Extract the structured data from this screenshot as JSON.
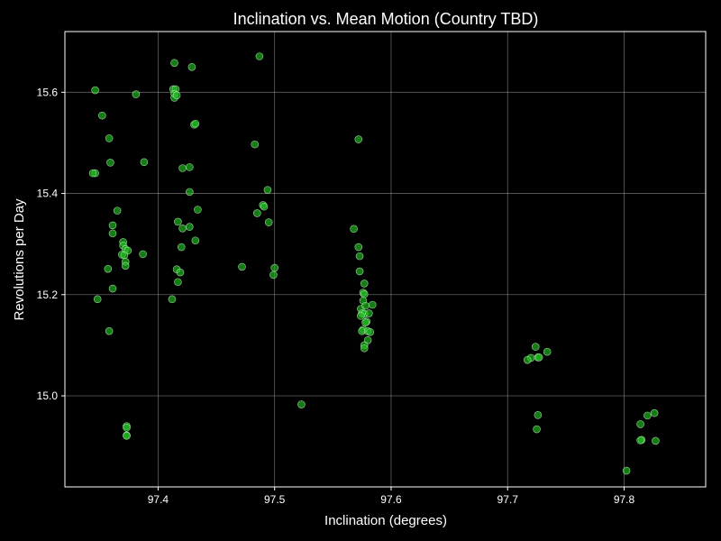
{
  "chart_data": {
    "type": "scatter",
    "title": "Inclination vs. Mean Motion (Country TBD)",
    "xlabel": "Inclination (degrees)",
    "ylabel": "Revolutions per Day",
    "xlim": [
      97.32,
      97.87
    ],
    "ylim": [
      14.82,
      15.72
    ],
    "xticks": [
      97.4,
      97.5,
      97.6,
      97.7,
      97.8
    ],
    "yticks": [
      15.0,
      15.2,
      15.4,
      15.6
    ],
    "xtick_labels": [
      "97.4",
      "97.5",
      "97.6",
      "97.7",
      "97.8"
    ],
    "ytick_labels": [
      "15.0",
      "15.2",
      "15.4",
      "15.6"
    ],
    "grid": true,
    "colors": {
      "background": "#000000",
      "point_fill": "#22c022",
      "point_edge": "#c8ffc8"
    },
    "points": [
      {
        "x": 97.346,
        "y": 15.604
      },
      {
        "x": 97.346,
        "y": 15.44
      },
      {
        "x": 97.344,
        "y": 15.44
      },
      {
        "x": 97.352,
        "y": 15.554
      },
      {
        "x": 97.358,
        "y": 15.509
      },
      {
        "x": 97.359,
        "y": 15.461
      },
      {
        "x": 97.348,
        "y": 15.191
      },
      {
        "x": 97.357,
        "y": 15.251
      },
      {
        "x": 97.358,
        "y": 15.128
      },
      {
        "x": 97.361,
        "y": 15.212
      },
      {
        "x": 97.365,
        "y": 15.366
      },
      {
        "x": 97.361,
        "y": 15.337
      },
      {
        "x": 97.361,
        "y": 15.321
      },
      {
        "x": 97.37,
        "y": 15.304
      },
      {
        "x": 97.37,
        "y": 15.297
      },
      {
        "x": 97.372,
        "y": 15.29
      },
      {
        "x": 97.374,
        "y": 15.287
      },
      {
        "x": 97.369,
        "y": 15.279
      },
      {
        "x": 97.371,
        "y": 15.278
      },
      {
        "x": 97.372,
        "y": 15.265
      },
      {
        "x": 97.372,
        "y": 15.257
      },
      {
        "x": 97.381,
        "y": 15.596
      },
      {
        "x": 97.388,
        "y": 15.462
      },
      {
        "x": 97.387,
        "y": 15.28
      },
      {
        "x": 97.373,
        "y": 14.94
      },
      {
        "x": 97.373,
        "y": 14.937
      },
      {
        "x": 97.373,
        "y": 14.922
      },
      {
        "x": 97.373,
        "y": 14.921
      },
      {
        "x": 97.414,
        "y": 15.658
      },
      {
        "x": 97.413,
        "y": 15.606
      },
      {
        "x": 97.415,
        "y": 15.606
      },
      {
        "x": 97.414,
        "y": 15.597
      },
      {
        "x": 97.414,
        "y": 15.589
      },
      {
        "x": 97.416,
        "y": 15.594
      },
      {
        "x": 97.429,
        "y": 15.65
      },
      {
        "x": 97.421,
        "y": 15.45
      },
      {
        "x": 97.427,
        "y": 15.452
      },
      {
        "x": 97.431,
        "y": 15.536
      },
      {
        "x": 97.432,
        "y": 15.538
      },
      {
        "x": 97.427,
        "y": 15.403
      },
      {
        "x": 97.434,
        "y": 15.368
      },
      {
        "x": 97.417,
        "y": 15.344
      },
      {
        "x": 97.421,
        "y": 15.331
      },
      {
        "x": 97.427,
        "y": 15.334
      },
      {
        "x": 97.432,
        "y": 15.307
      },
      {
        "x": 97.42,
        "y": 15.294
      },
      {
        "x": 97.416,
        "y": 15.25
      },
      {
        "x": 97.419,
        "y": 15.244
      },
      {
        "x": 97.417,
        "y": 15.225
      },
      {
        "x": 97.412,
        "y": 15.191
      },
      {
        "x": 97.487,
        "y": 15.671
      },
      {
        "x": 97.483,
        "y": 15.497
      },
      {
        "x": 97.494,
        "y": 15.407
      },
      {
        "x": 97.49,
        "y": 15.377
      },
      {
        "x": 97.491,
        "y": 15.374
      },
      {
        "x": 97.485,
        "y": 15.361
      },
      {
        "x": 97.495,
        "y": 15.343
      },
      {
        "x": 97.472,
        "y": 15.255
      },
      {
        "x": 97.5,
        "y": 15.253
      },
      {
        "x": 97.499,
        "y": 15.239
      },
      {
        "x": 97.523,
        "y": 14.983
      },
      {
        "x": 97.572,
        "y": 15.507
      },
      {
        "x": 97.568,
        "y": 15.33
      },
      {
        "x": 97.572,
        "y": 15.294
      },
      {
        "x": 97.573,
        "y": 15.276
      },
      {
        "x": 97.573,
        "y": 15.246
      },
      {
        "x": 97.577,
        "y": 15.222
      },
      {
        "x": 97.576,
        "y": 15.204
      },
      {
        "x": 97.577,
        "y": 15.201
      },
      {
        "x": 97.576,
        "y": 15.188
      },
      {
        "x": 97.574,
        "y": 15.172
      },
      {
        "x": 97.578,
        "y": 15.178
      },
      {
        "x": 97.575,
        "y": 15.163
      },
      {
        "x": 97.577,
        "y": 15.162
      },
      {
        "x": 97.574,
        "y": 15.158
      },
      {
        "x": 97.579,
        "y": 15.147
      },
      {
        "x": 97.578,
        "y": 15.145
      },
      {
        "x": 97.576,
        "y": 15.131
      },
      {
        "x": 97.575,
        "y": 15.128
      },
      {
        "x": 97.58,
        "y": 15.128
      },
      {
        "x": 97.582,
        "y": 15.126
      },
      {
        "x": 97.584,
        "y": 15.18
      },
      {
        "x": 97.581,
        "y": 15.163
      },
      {
        "x": 97.58,
        "y": 15.11
      },
      {
        "x": 97.577,
        "y": 15.1
      },
      {
        "x": 97.577,
        "y": 15.094
      },
      {
        "x": 97.724,
        "y": 15.097
      },
      {
        "x": 97.734,
        "y": 15.087
      },
      {
        "x": 97.72,
        "y": 15.075
      },
      {
        "x": 97.726,
        "y": 15.076
      },
      {
        "x": 97.727,
        "y": 15.076
      },
      {
        "x": 97.717,
        "y": 15.071
      },
      {
        "x": 97.726,
        "y": 14.962
      },
      {
        "x": 97.725,
        "y": 14.934
      },
      {
        "x": 97.802,
        "y": 14.852
      },
      {
        "x": 97.826,
        "y": 14.966
      },
      {
        "x": 97.82,
        "y": 14.961
      },
      {
        "x": 97.814,
        "y": 14.944
      },
      {
        "x": 97.815,
        "y": 14.913
      },
      {
        "x": 97.814,
        "y": 14.912
      },
      {
        "x": 97.827,
        "y": 14.911
      }
    ]
  }
}
